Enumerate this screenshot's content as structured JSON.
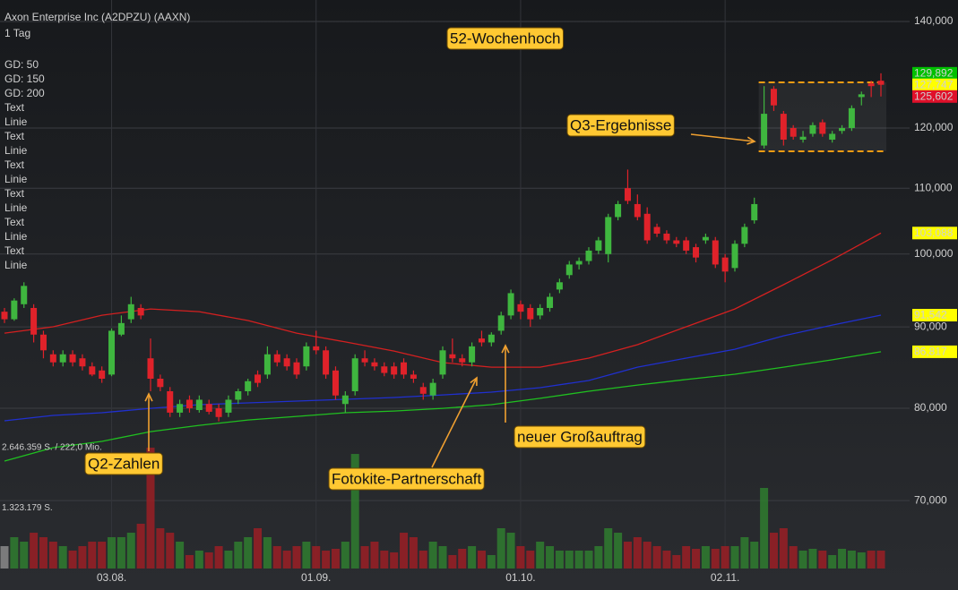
{
  "chart_data": {
    "type": "candlestick",
    "title": "Axon Enterprise Inc (A2DPZU) (AAXN)",
    "subtitle": "1 Tag",
    "log_y": true,
    "grid": true,
    "ylim": [
      63450,
      144420
    ],
    "yticks": [
      {
        "value": 70000,
        "label": "70,000"
      },
      {
        "value": 80000,
        "label": "80,000"
      },
      {
        "value": 90000,
        "label": "90,000"
      },
      {
        "value": 100000,
        "label": "100,000"
      },
      {
        "value": 110000,
        "label": "110,000"
      },
      {
        "value": 120000,
        "label": "120,000"
      },
      {
        "value": 140000,
        "label": "140,000"
      }
    ],
    "categories": [
      null,
      null,
      null,
      null,
      null,
      null,
      null,
      null,
      null,
      null,
      null,
      "03.08.",
      null,
      null,
      null,
      null,
      null,
      null,
      null,
      null,
      null,
      null,
      null,
      null,
      null,
      null,
      null,
      null,
      null,
      null,
      null,
      null,
      "01.09.",
      null,
      null,
      null,
      null,
      null,
      null,
      null,
      null,
      null,
      null,
      null,
      null,
      null,
      null,
      null,
      null,
      null,
      null,
      null,
      null,
      "01.10.",
      null,
      null,
      null,
      null,
      null,
      null,
      null,
      null,
      null,
      null,
      null,
      null,
      null,
      null,
      null,
      null,
      null,
      null,
      null,
      null,
      "02.11.",
      null,
      null,
      null,
      null,
      null,
      null,
      null,
      null,
      null,
      null,
      null,
      null,
      null,
      null,
      null,
      null
    ],
    "up_color": "#3fb63f",
    "down_color": "#e0222a",
    "open": [
      92000,
      91000,
      93000,
      92500,
      89000,
      86500,
      85500,
      86500,
      86000,
      85000,
      84500,
      84000,
      89000,
      91000,
      92500,
      86000,
      83500,
      82000,
      79500,
      81000,
      79800,
      80500,
      80000,
      79500,
      81000,
      82000,
      84000,
      84000,
      86500,
      86000,
      85500,
      85000,
      87500,
      87000,
      84500,
      80500,
      82000,
      86000,
      85500,
      85000,
      85000,
      85500,
      84000,
      82500,
      81500,
      84000,
      86500,
      86000,
      85500,
      88500,
      88000,
      89500,
      91500,
      93000,
      92500,
      91500,
      92500,
      95000,
      97000,
      98500,
      99000,
      100500,
      100000,
      105500,
      110000,
      107500,
      106000,
      104000,
      103000,
      102000,
      102000,
      101000,
      102000,
      102000,
      99500,
      98000,
      101500,
      105000,
      117000,
      127000,
      122500,
      120000,
      118000,
      119000,
      121000,
      118000,
      119500,
      120000,
      125500,
      128000,
      128500
    ],
    "high": [
      92500,
      93800,
      96000,
      93000,
      89500,
      87000,
      87000,
      87000,
      86500,
      85500,
      85000,
      89800,
      91500,
      94000,
      93000,
      88500,
      84000,
      82500,
      81000,
      81500,
      81500,
      81000,
      80500,
      81500,
      82300,
      83500,
      84500,
      87500,
      87000,
      86500,
      86000,
      88000,
      89500,
      87500,
      85000,
      82000,
      86500,
      87000,
      86000,
      85500,
      85500,
      86000,
      84500,
      83000,
      83500,
      87500,
      88500,
      86500,
      88000,
      89500,
      89300,
      92000,
      95000,
      93500,
      93000,
      93000,
      94500,
      96500,
      99000,
      99500,
      101000,
      102500,
      106000,
      108000,
      113000,
      109000,
      107000,
      104500,
      103500,
      102500,
      102500,
      101500,
      103000,
      102500,
      100000,
      102000,
      104500,
      108500,
      127500,
      127500,
      123000,
      120500,
      119500,
      121000,
      121500,
      119500,
      120500,
      124000,
      126500,
      128500,
      129892
    ],
    "low": [
      90500,
      90800,
      92500,
      88000,
      86000,
      85000,
      85000,
      85000,
      84500,
      83800,
      83000,
      83800,
      88800,
      90500,
      91000,
      82000,
      82000,
      79000,
      79000,
      79500,
      79500,
      79300,
      78500,
      79000,
      80500,
      81500,
      82500,
      83500,
      85000,
      84500,
      83500,
      84500,
      86500,
      83500,
      81000,
      79500,
      81500,
      85000,
      84500,
      83800,
      83500,
      83500,
      83000,
      81000,
      81000,
      83500,
      85500,
      85000,
      85000,
      87500,
      87500,
      89000,
      91000,
      91000,
      90000,
      91000,
      92000,
      94500,
      96500,
      97800,
      98500,
      100000,
      98800,
      105000,
      107500,
      105000,
      101500,
      102500,
      101500,
      101000,
      100000,
      98800,
      101500,
      98000,
      96000,
      97500,
      101000,
      104500,
      116500,
      123000,
      117000,
      118000,
      117500,
      118500,
      118500,
      117500,
      119000,
      119500,
      124000,
      125500,
      125602
    ],
    "close": [
      91000,
      93500,
      95500,
      89000,
      87000,
      85500,
      86500,
      85500,
      85000,
      84000,
      83500,
      89500,
      90500,
      93000,
      91500,
      83500,
      82500,
      79500,
      80500,
      80000,
      81000,
      79600,
      79000,
      81000,
      82000,
      83200,
      83000,
      86500,
      85500,
      85000,
      84000,
      87500,
      87000,
      84000,
      81500,
      81500,
      86000,
      85500,
      85000,
      84200,
      84000,
      84000,
      83500,
      81700,
      83000,
      87000,
      86000,
      85500,
      87500,
      88000,
      89000,
      91500,
      94500,
      92000,
      91000,
      92500,
      94000,
      96000,
      98500,
      99000,
      100500,
      102000,
      105500,
      107500,
      108000,
      105500,
      102000,
      103000,
      102000,
      101500,
      100500,
      99500,
      102500,
      98500,
      97500,
      101500,
      104000,
      107500,
      122500,
      124000,
      118000,
      118500,
      118500,
      120500,
      119000,
      119000,
      120000,
      123500,
      126000,
      127500,
      127747
    ],
    "moving_averages": [
      {
        "name": "GD: 50",
        "color": "#d42020",
        "x": [
          0,
          5,
          10,
          15,
          20,
          25,
          30,
          35,
          40,
          45,
          50,
          55,
          60,
          65,
          70,
          75,
          80,
          85,
          90
        ],
        "values": [
          89190,
          90010,
          91530,
          92370,
          92010,
          90830,
          89190,
          88060,
          86910,
          85470,
          84910,
          84910,
          86030,
          87710,
          90010,
          92370,
          95660,
          99190,
          103088
        ]
      },
      {
        "name": "GD: 150",
        "color": "#2030d0",
        "x": [
          0,
          5,
          10,
          15,
          20,
          25,
          30,
          35,
          40,
          45,
          50,
          55,
          60,
          65,
          70,
          75,
          80,
          85,
          90
        ],
        "values": [
          78570,
          79180,
          79490,
          80000,
          80420,
          80630,
          80840,
          81050,
          81260,
          81570,
          81890,
          82420,
          83280,
          84910,
          86030,
          87140,
          88840,
          90240,
          91542
        ]
      },
      {
        "name": "GD: 200",
        "color": "#20c020",
        "x": [
          0,
          5,
          10,
          15,
          20,
          25,
          30,
          35,
          40,
          45,
          50,
          55,
          60,
          65,
          70,
          75,
          80,
          85,
          90
        ],
        "values": [
          74120,
          75570,
          76260,
          77350,
          78050,
          78660,
          79070,
          79490,
          79690,
          80000,
          80420,
          81160,
          82000,
          82740,
          83400,
          84040,
          84910,
          85810,
          86817
        ]
      }
    ],
    "legend_extra": {
      "color": "#f0a020",
      "items": [
        "Text",
        "Linie",
        "Text",
        "Linie",
        "Text",
        "Linie",
        "Text",
        "Linie",
        "Text",
        "Linie",
        "Text",
        "Linie"
      ]
    },
    "price_labels": [
      {
        "value": 129892,
        "label": "129,892",
        "color": "#00c000",
        "text_color": "#000000"
      },
      {
        "value": 127747,
        "label": "127,747",
        "color": "#ffff00",
        "text_color": "#000000"
      },
      {
        "value": 125602,
        "label": "125,602",
        "color": "#e0102a",
        "text_color": "#ffffff"
      },
      {
        "value": 103088,
        "label": "103,088",
        "color": "#ffff00",
        "text_color": "#000000"
      },
      {
        "value": 91542,
        "label": "91,542",
        "color": "#ffff00",
        "text_color": "#000000"
      },
      {
        "value": 86817,
        "label": "86,817",
        "color": "#ffff00",
        "text_color": "#000000"
      }
    ],
    "range_box": {
      "high": 128200,
      "low": 116030,
      "color": "#f39c12"
    },
    "volume": {
      "ylim": [
        0,
        2646359
      ],
      "ticks": [
        {
          "value": 2646359,
          "label": "2.646.359 S. / 222,0 Mio."
        },
        {
          "value": 1323179,
          "label": "1.323.179 S."
        }
      ],
      "values": [
        490000,
        686000,
        588000,
        784000,
        686000,
        588000,
        490000,
        392000,
        490000,
        588000,
        588000,
        686000,
        686000,
        784000,
        980000,
        2646000,
        882000,
        784000,
        588000,
        294000,
        392000,
        352800,
        490000,
        392000,
        588000,
        686000,
        882000,
        686000,
        490000,
        392000,
        490000,
        588000,
        490000,
        392000,
        431200,
        588000,
        2508800,
        490000,
        588000,
        392000,
        352800,
        784000,
        686000,
        392000,
        588000,
        490000,
        294000,
        431200,
        490000,
        392000,
        294000,
        882000,
        784000,
        490000,
        392000,
        588000,
        490000,
        392000,
        392000,
        392000,
        392000,
        490000,
        882000,
        784000,
        588000,
        686000,
        588000,
        490000,
        392000,
        294000,
        490000,
        431200,
        490000,
        431200,
        490000,
        490000,
        686000,
        588000,
        1764000,
        784000,
        882000,
        490000,
        392000,
        431200,
        392000,
        294000,
        431200,
        392000,
        352800,
        392000,
        392000
      ]
    },
    "annotations": [
      {
        "text": "52-Wochenhoch"
      },
      {
        "text": "Q3-Ergebnisse"
      },
      {
        "text": "Q2-Zahlen"
      },
      {
        "text": "Fotokite-Partnerschaft"
      },
      {
        "text": "neuer Großauftrag"
      }
    ]
  }
}
